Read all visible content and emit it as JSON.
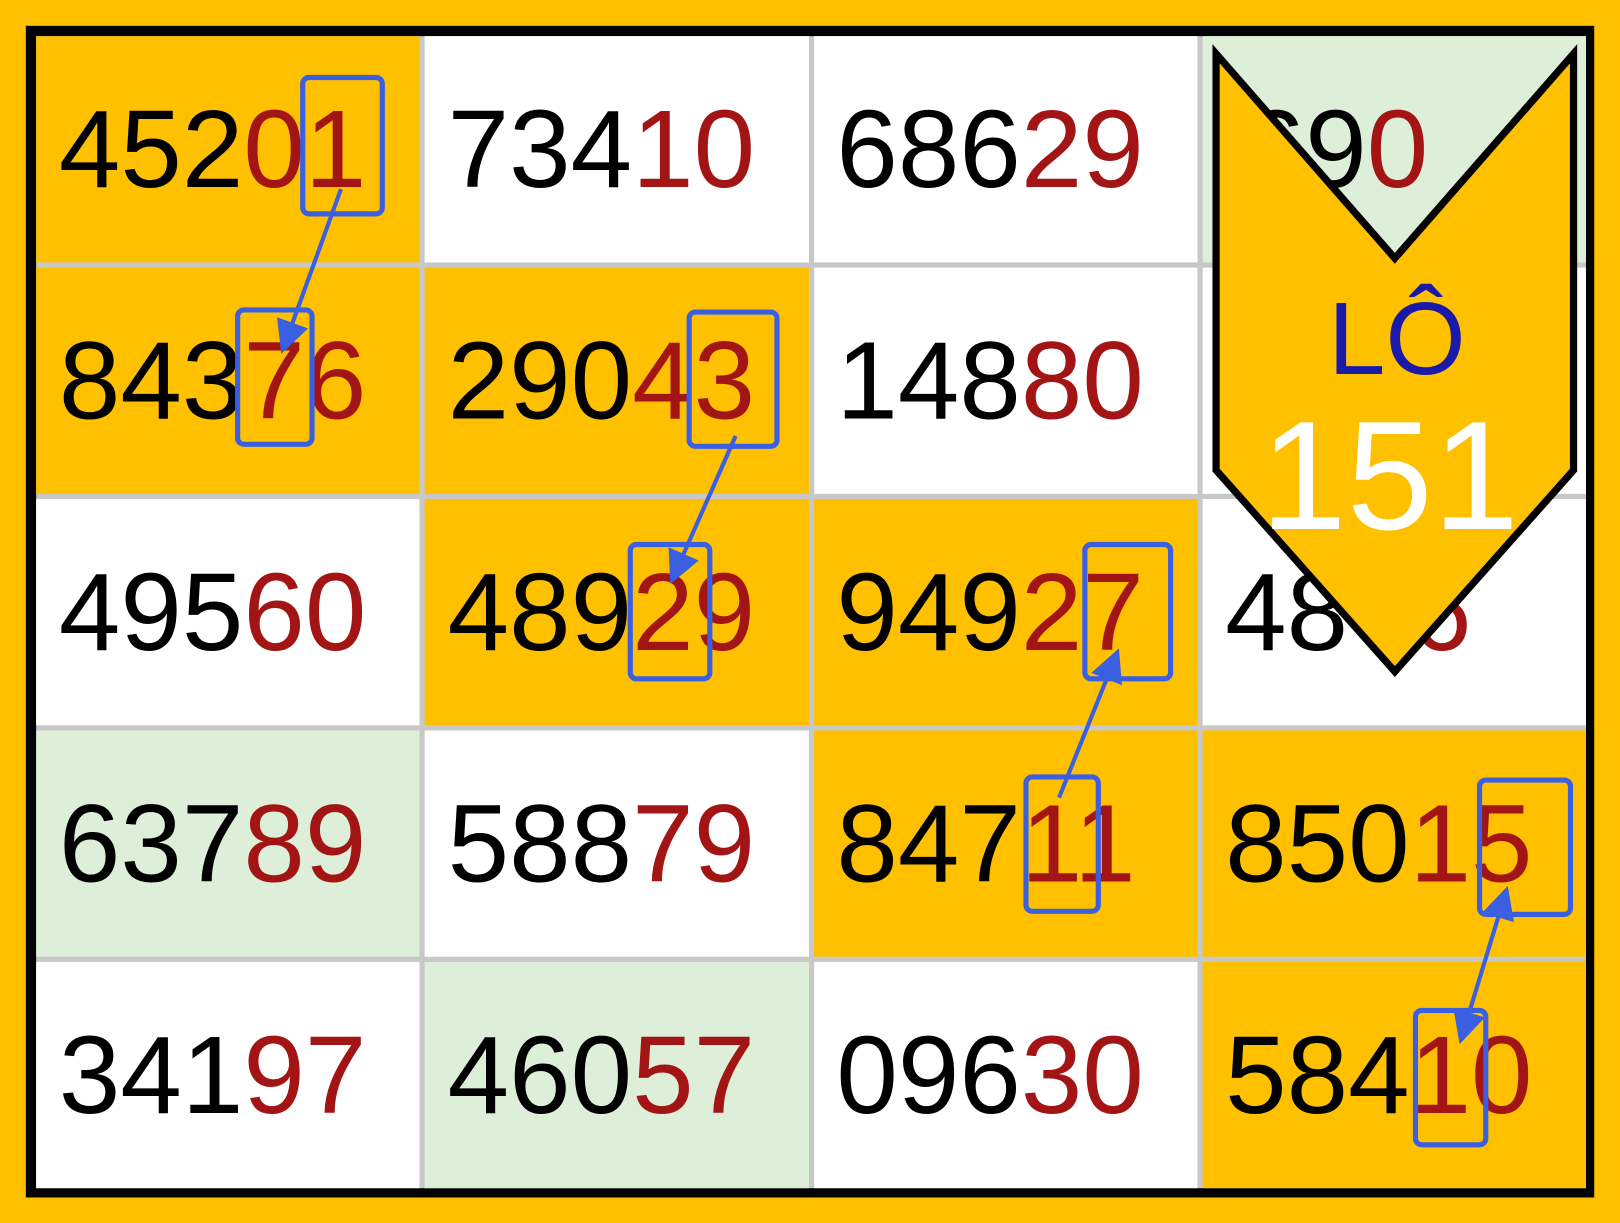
{
  "colors": {
    "highlight": "#FFC000",
    "plain": "#FFFFFF",
    "green": "#DDEED9",
    "tail_digits": "#A31515",
    "marker": "#3A5FE0",
    "badge_text": "#1A1AAA"
  },
  "rows": [
    [
      {
        "lead": "452",
        "tail": "01",
        "bg": "orange"
      },
      {
        "lead": "734",
        "tail": "10",
        "bg": "white"
      },
      {
        "lead": "686",
        "tail": "29",
        "bg": "white"
      },
      {
        "lead": "69",
        "tail": "0",
        "bg": "green"
      }
    ],
    [
      {
        "lead": "843",
        "tail": "76",
        "bg": "orange"
      },
      {
        "lead": "290",
        "tail": "43",
        "bg": "orange"
      },
      {
        "lead": "148",
        "tail": "80",
        "bg": "white"
      },
      {
        "lead": "",
        "tail": "",
        "bg": "white"
      }
    ],
    [
      {
        "lead": "495",
        "tail": "60",
        "bg": "white"
      },
      {
        "lead": "489",
        "tail": "29",
        "bg": "orange"
      },
      {
        "lead": "949",
        "tail": "27",
        "bg": "orange"
      },
      {
        "lead": "48",
        "tail": "6",
        "bg": "white"
      }
    ],
    [
      {
        "lead": "637",
        "tail": "89",
        "bg": "green"
      },
      {
        "lead": "588",
        "tail": "79",
        "bg": "white"
      },
      {
        "lead": "847",
        "tail": "11",
        "bg": "orange"
      },
      {
        "lead": "850",
        "tail": "15",
        "bg": "orange"
      }
    ],
    [
      {
        "lead": "341",
        "tail": "97",
        "bg": "white"
      },
      {
        "lead": "460",
        "tail": "57",
        "bg": "green"
      },
      {
        "lead": "096",
        "tail": "30",
        "bg": "white"
      },
      {
        "lead": "584",
        "tail": "10",
        "bg": "orange"
      }
    ]
  ],
  "badge": {
    "label": "LÔ",
    "number": "151",
    "icon": "chevron-down-icon"
  }
}
